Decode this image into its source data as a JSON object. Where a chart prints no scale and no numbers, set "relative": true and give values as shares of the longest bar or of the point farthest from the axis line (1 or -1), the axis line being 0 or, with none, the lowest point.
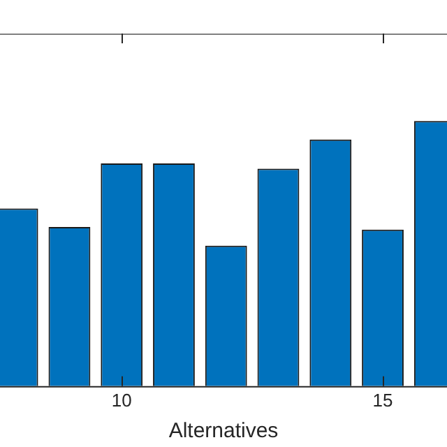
{
  "chart_data": {
    "type": "bar",
    "xlabel": "Alternatives",
    "x": [
      8,
      9,
      10,
      11,
      12,
      13,
      14,
      15,
      16
    ],
    "values": [
      0.67,
      0.6,
      0.84,
      0.84,
      0.53,
      0.82,
      0.93,
      0.59,
      1.0
    ],
    "color": "#0072bd",
    "relative": true,
    "xlim": [
      7.67,
      16.23
    ],
    "xticks": [
      10,
      15
    ],
    "grid": false,
    "legend": false
  }
}
